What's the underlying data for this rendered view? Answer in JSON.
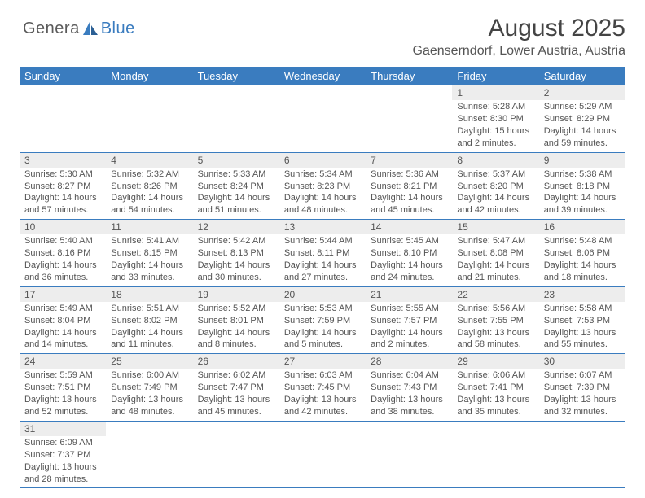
{
  "logo": {
    "part1": "Genera",
    "part2": "Blue"
  },
  "title": "August 2025",
  "subtitle": "Gaenserndorf, Lower Austria, Austria",
  "colors": {
    "header_bg": "#3a7cbf",
    "header_fg": "#ffffff",
    "daynum_bg": "#ededed",
    "text": "#555555",
    "row_border": "#3a7cbf"
  },
  "columns": [
    "Sunday",
    "Monday",
    "Tuesday",
    "Wednesday",
    "Thursday",
    "Friday",
    "Saturday"
  ],
  "weeks": [
    [
      null,
      null,
      null,
      null,
      null,
      {
        "n": "1",
        "sr": "5:28 AM",
        "ss": "8:30 PM",
        "dl": "15 hours and 2 minutes."
      },
      {
        "n": "2",
        "sr": "5:29 AM",
        "ss": "8:29 PM",
        "dl": "14 hours and 59 minutes."
      }
    ],
    [
      {
        "n": "3",
        "sr": "5:30 AM",
        "ss": "8:27 PM",
        "dl": "14 hours and 57 minutes."
      },
      {
        "n": "4",
        "sr": "5:32 AM",
        "ss": "8:26 PM",
        "dl": "14 hours and 54 minutes."
      },
      {
        "n": "5",
        "sr": "5:33 AM",
        "ss": "8:24 PM",
        "dl": "14 hours and 51 minutes."
      },
      {
        "n": "6",
        "sr": "5:34 AM",
        "ss": "8:23 PM",
        "dl": "14 hours and 48 minutes."
      },
      {
        "n": "7",
        "sr": "5:36 AM",
        "ss": "8:21 PM",
        "dl": "14 hours and 45 minutes."
      },
      {
        "n": "8",
        "sr": "5:37 AM",
        "ss": "8:20 PM",
        "dl": "14 hours and 42 minutes."
      },
      {
        "n": "9",
        "sr": "5:38 AM",
        "ss": "8:18 PM",
        "dl": "14 hours and 39 minutes."
      }
    ],
    [
      {
        "n": "10",
        "sr": "5:40 AM",
        "ss": "8:16 PM",
        "dl": "14 hours and 36 minutes."
      },
      {
        "n": "11",
        "sr": "5:41 AM",
        "ss": "8:15 PM",
        "dl": "14 hours and 33 minutes."
      },
      {
        "n": "12",
        "sr": "5:42 AM",
        "ss": "8:13 PM",
        "dl": "14 hours and 30 minutes."
      },
      {
        "n": "13",
        "sr": "5:44 AM",
        "ss": "8:11 PM",
        "dl": "14 hours and 27 minutes."
      },
      {
        "n": "14",
        "sr": "5:45 AM",
        "ss": "8:10 PM",
        "dl": "14 hours and 24 minutes."
      },
      {
        "n": "15",
        "sr": "5:47 AM",
        "ss": "8:08 PM",
        "dl": "14 hours and 21 minutes."
      },
      {
        "n": "16",
        "sr": "5:48 AM",
        "ss": "8:06 PM",
        "dl": "14 hours and 18 minutes."
      }
    ],
    [
      {
        "n": "17",
        "sr": "5:49 AM",
        "ss": "8:04 PM",
        "dl": "14 hours and 14 minutes."
      },
      {
        "n": "18",
        "sr": "5:51 AM",
        "ss": "8:02 PM",
        "dl": "14 hours and 11 minutes."
      },
      {
        "n": "19",
        "sr": "5:52 AM",
        "ss": "8:01 PM",
        "dl": "14 hours and 8 minutes."
      },
      {
        "n": "20",
        "sr": "5:53 AM",
        "ss": "7:59 PM",
        "dl": "14 hours and 5 minutes."
      },
      {
        "n": "21",
        "sr": "5:55 AM",
        "ss": "7:57 PM",
        "dl": "14 hours and 2 minutes."
      },
      {
        "n": "22",
        "sr": "5:56 AM",
        "ss": "7:55 PM",
        "dl": "13 hours and 58 minutes."
      },
      {
        "n": "23",
        "sr": "5:58 AM",
        "ss": "7:53 PM",
        "dl": "13 hours and 55 minutes."
      }
    ],
    [
      {
        "n": "24",
        "sr": "5:59 AM",
        "ss": "7:51 PM",
        "dl": "13 hours and 52 minutes."
      },
      {
        "n": "25",
        "sr": "6:00 AM",
        "ss": "7:49 PM",
        "dl": "13 hours and 48 minutes."
      },
      {
        "n": "26",
        "sr": "6:02 AM",
        "ss": "7:47 PM",
        "dl": "13 hours and 45 minutes."
      },
      {
        "n": "27",
        "sr": "6:03 AM",
        "ss": "7:45 PM",
        "dl": "13 hours and 42 minutes."
      },
      {
        "n": "28",
        "sr": "6:04 AM",
        "ss": "7:43 PM",
        "dl": "13 hours and 38 minutes."
      },
      {
        "n": "29",
        "sr": "6:06 AM",
        "ss": "7:41 PM",
        "dl": "13 hours and 35 minutes."
      },
      {
        "n": "30",
        "sr": "6:07 AM",
        "ss": "7:39 PM",
        "dl": "13 hours and 32 minutes."
      }
    ],
    [
      {
        "n": "31",
        "sr": "6:09 AM",
        "ss": "7:37 PM",
        "dl": "13 hours and 28 minutes."
      },
      null,
      null,
      null,
      null,
      null,
      null
    ]
  ],
  "labels": {
    "sunrise": "Sunrise: ",
    "sunset": "Sunset: ",
    "daylight": "Daylight: "
  }
}
